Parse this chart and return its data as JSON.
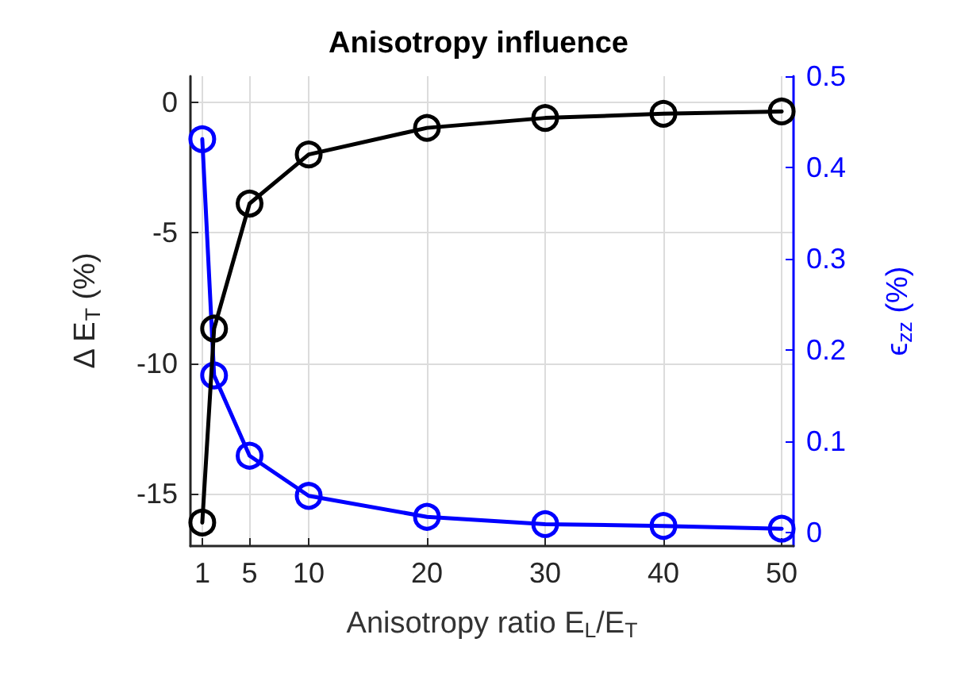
{
  "chart_data": {
    "type": "line",
    "title": "Anisotropy influence",
    "xlabel": "Anisotropy ratio E$_{L}$/E$_{T}$",
    "ylabel": "Δ E$_{T}$ (%)",
    "y2label": "ϵ$_{zz}$ (%)",
    "x": [
      1,
      2,
      5,
      10,
      20,
      30,
      40,
      50
    ],
    "series": [
      {
        "color": "#000000",
        "values": [
          -16.1,
          -8.67,
          -3.88,
          -2.0,
          -0.98,
          -0.6,
          -0.44,
          -0.35
        ]
      },
      {
        "color": "#0000ff",
        "axis": "y2",
        "values": [
          0.431,
          0.172,
          0.084,
          0.04,
          0.017,
          0.009,
          0.007,
          0.004
        ]
      }
    ],
    "xlim": [
      0,
      51
    ],
    "xticks": [
      1,
      5,
      10,
      20,
      30,
      40,
      50
    ],
    "ylim": [
      -17,
      1
    ],
    "yticks": [
      -15,
      -10,
      -5,
      0
    ],
    "y2lim": [
      -0.015,
      0.5
    ],
    "y2ticks": [
      0,
      0.1,
      0.2,
      0.3,
      0.4,
      0.5
    ],
    "grid": true,
    "marker": "circle",
    "line_style": "solid"
  }
}
